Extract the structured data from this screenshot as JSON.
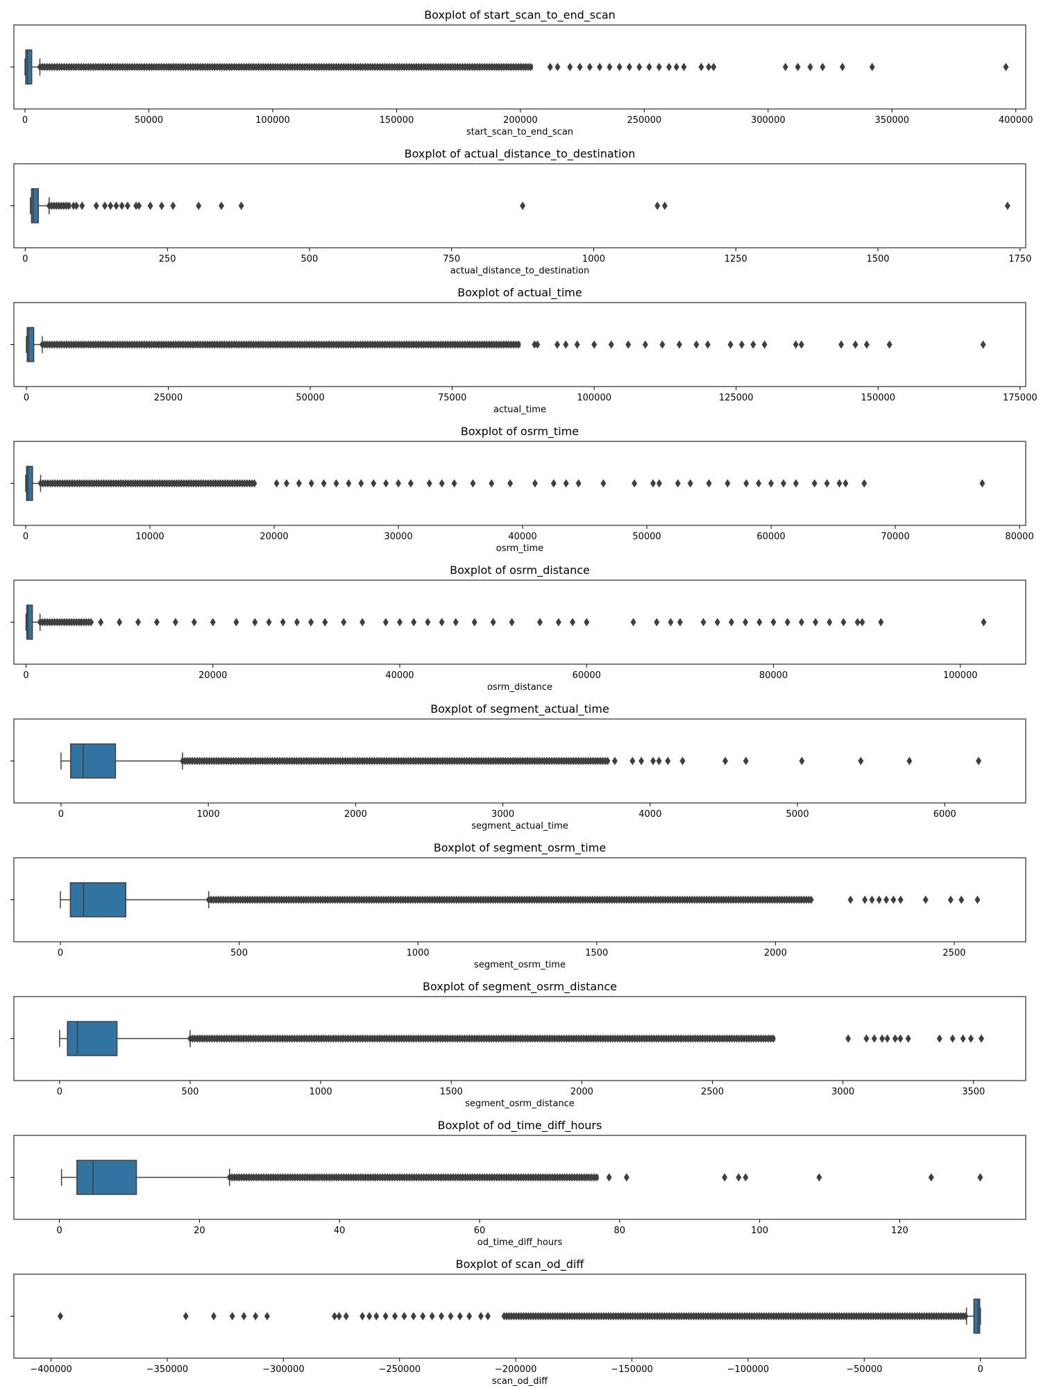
{
  "chart_data": [
    {
      "type": "boxplot",
      "title": "Boxplot of start_scan_to_end_scan",
      "xlabel": "start_scan_to_end_scan",
      "xlim": [
        -4500,
        404000
      ],
      "ticks": [
        0,
        50000,
        100000,
        150000,
        200000,
        250000,
        300000,
        350000,
        400000
      ],
      "tick_labels": [
        "0",
        "50000",
        "100000",
        "150000",
        "200000",
        "250000",
        "300000",
        "350000",
        "400000"
      ],
      "whisker_low": 0,
      "q1": 300,
      "median": 1000,
      "q3": 2700,
      "whisker_high": 6000,
      "outlier_band": [
        6000,
        205000
      ],
      "outliers": [
        212000,
        215000,
        220000,
        224000,
        228000,
        232000,
        236000,
        240000,
        244000,
        248000,
        252000,
        256000,
        260000,
        263000,
        266000,
        273000,
        276000,
        278000,
        307000,
        312000,
        317000,
        322000,
        330000,
        342000,
        396000
      ]
    },
    {
      "type": "boxplot",
      "title": "Boxplot of actual_distance_to_destination",
      "xlabel": "actual_distance_to_destination",
      "xlim": [
        -20,
        1760
      ],
      "ticks": [
        0,
        250,
        500,
        750,
        1000,
        1250,
        1500,
        1750
      ],
      "tick_labels": [
        "0",
        "250",
        "500",
        "750",
        "1000",
        "1250",
        "1500",
        "1750"
      ],
      "whisker_low": 9,
      "q1": 11,
      "median": 14,
      "q3": 23,
      "whisker_high": 42,
      "outlier_band": [
        42,
        80
      ],
      "outliers": [
        85,
        90,
        100,
        125,
        140,
        150,
        160,
        170,
        180,
        195,
        200,
        220,
        240,
        260,
        305,
        345,
        380,
        875,
        1112,
        1125,
        1728
      ]
    },
    {
      "type": "boxplot",
      "title": "Boxplot of actual_time",
      "xlabel": "actual_time",
      "xlim": [
        -2200,
        176000
      ],
      "ticks": [
        0,
        25000,
        50000,
        75000,
        100000,
        125000,
        150000,
        175000
      ],
      "tick_labels": [
        "0",
        "25000",
        "50000",
        "75000",
        "100000",
        "125000",
        "150000",
        "175000"
      ],
      "whisker_low": 0,
      "q1": 150,
      "median": 400,
      "q3": 1300,
      "whisker_high": 2800,
      "outlier_band": [
        2800,
        87000
      ],
      "outliers": [
        89500,
        90000,
        93500,
        95000,
        97000,
        100000,
        103000,
        106000,
        109000,
        112000,
        115000,
        118000,
        120000,
        124000,
        126000,
        128000,
        130000,
        135500,
        136500,
        143500,
        146000,
        148000,
        152000,
        168500
      ]
    },
    {
      "type": "boxplot",
      "title": "Boxplot of osrm_time",
      "xlabel": "osrm_time",
      "xlim": [
        -950,
        80500
      ],
      "ticks": [
        0,
        10000,
        20000,
        30000,
        40000,
        50000,
        60000,
        70000,
        80000
      ],
      "tick_labels": [
        "0",
        "10000",
        "20000",
        "30000",
        "40000",
        "50000",
        "60000",
        "70000",
        "80000"
      ],
      "whisker_low": 0,
      "q1": 70,
      "median": 180,
      "q3": 550,
      "whisker_high": 1200,
      "outlier_band": [
        1200,
        18500
      ],
      "outliers": [
        20200,
        21000,
        22000,
        23000,
        24000,
        25000,
        26000,
        27000,
        28000,
        29000,
        30000,
        31000,
        32500,
        33500,
        34500,
        36000,
        37500,
        39000,
        41000,
        42500,
        43500,
        44500,
        46500,
        49000,
        50500,
        51000,
        52500,
        53500,
        55000,
        56500,
        58000,
        59000,
        60000,
        61000,
        62000,
        63500,
        64500,
        65500,
        66000,
        67500,
        77000
      ]
    },
    {
      "type": "boxplot",
      "title": "Boxplot of osrm_distance",
      "xlabel": "osrm_distance",
      "xlim": [
        -1300,
        107000
      ],
      "ticks": [
        0,
        20000,
        40000,
        60000,
        80000,
        100000
      ],
      "tick_labels": [
        "0",
        "20000",
        "40000",
        "60000",
        "80000",
        "100000"
      ],
      "whisker_low": 0,
      "q1": 80,
      "median": 220,
      "q3": 680,
      "whisker_high": 1500,
      "outlier_band": [
        1500,
        7000
      ],
      "outliers": [
        8000,
        10000,
        12000,
        14000,
        16000,
        18000,
        20000,
        22500,
        24500,
        26000,
        27500,
        29000,
        30500,
        32000,
        34000,
        36000,
        38500,
        40000,
        41500,
        43000,
        44500,
        46000,
        48000,
        50000,
        52000,
        55000,
        57000,
        58500,
        60000,
        65000,
        67500,
        69000,
        70000,
        72500,
        74000,
        75500,
        77000,
        78500,
        80000,
        81500,
        83000,
        84500,
        86000,
        87500,
        89000,
        89500,
        91500,
        102500
      ]
    },
    {
      "type": "boxplot",
      "title": "Boxplot of segment_actual_time",
      "xlabel": "segment_actual_time",
      "xlim": [
        -320,
        6550
      ],
      "ticks": [
        0,
        1000,
        2000,
        3000,
        4000,
        5000,
        6000
      ],
      "tick_labels": [
        "0",
        "1000",
        "2000",
        "3000",
        "4000",
        "5000",
        "6000"
      ],
      "whisker_low": 0,
      "q1": 65,
      "median": 150,
      "q3": 370,
      "whisker_high": 825,
      "outlier_band": [
        825,
        3720
      ],
      "outliers": [
        3760,
        3880,
        3940,
        4020,
        4060,
        4120,
        4220,
        4510,
        4650,
        5030,
        5430,
        5760,
        6230
      ]
    },
    {
      "type": "boxplot",
      "title": "Boxplot of segment_osrm_time",
      "xlabel": "segment_osrm_time",
      "xlim": [
        -130,
        2700
      ],
      "ticks": [
        0,
        500,
        1000,
        1500,
        2000,
        2500
      ],
      "tick_labels": [
        "0",
        "500",
        "1000",
        "1500",
        "2000",
        "2500"
      ],
      "whisker_low": 0,
      "q1": 28,
      "median": 65,
      "q3": 183,
      "whisker_high": 415,
      "outlier_band": [
        415,
        2100
      ],
      "outliers": [
        2210,
        2250,
        2270,
        2290,
        2310,
        2330,
        2350,
        2420,
        2490,
        2520,
        2565
      ]
    },
    {
      "type": "boxplot",
      "title": "Boxplot of segment_osrm_distance",
      "xlabel": "segment_osrm_distance",
      "xlim": [
        -175,
        3700
      ],
      "ticks": [
        0,
        500,
        1000,
        1500,
        2000,
        2500,
        3000,
        3500
      ],
      "tick_labels": [
        "0",
        "500",
        "1000",
        "1500",
        "2000",
        "2500",
        "3000",
        "3500"
      ],
      "whisker_low": 0,
      "q1": 30,
      "median": 68,
      "q3": 220,
      "whisker_high": 500,
      "outlier_band": [
        500,
        2740
      ],
      "outliers": [
        3020,
        3090,
        3120,
        3150,
        3170,
        3200,
        3220,
        3250,
        3370,
        3420,
        3460,
        3490,
        3530
      ]
    },
    {
      "type": "boxplot",
      "title": "Boxplot of od_time_diff_hours",
      "xlabel": "od_time_diff_hours",
      "xlim": [
        -6.5,
        138
      ],
      "ticks": [
        0,
        20,
        40,
        60,
        80,
        100,
        120
      ],
      "tick_labels": [
        "0",
        "20",
        "40",
        "60",
        "80",
        "100",
        "120"
      ],
      "whisker_low": 0.3,
      "q1": 2.5,
      "median": 4.8,
      "q3": 11,
      "whisker_high": 24.3,
      "outlier_band": [
        24.3,
        77
      ],
      "outliers": [
        78.5,
        81,
        95,
        97,
        98,
        108.5,
        124.5,
        131.5
      ]
    },
    {
      "type": "boxplot",
      "title": "Boxplot of scan_od_diff",
      "xlabel": "scan_od_diff",
      "xlim": [
        -416000,
        19500
      ],
      "ticks": [
        -400000,
        -350000,
        -300000,
        -250000,
        -200000,
        -150000,
        -100000,
        -50000,
        0
      ],
      "tick_labels": [
        "−400000",
        "−350000",
        "−300000",
        "−250000",
        "−200000",
        "−150000",
        "−100000",
        "−50000",
        "0"
      ],
      "whisker_low": -6000,
      "q1": -2800,
      "median": -1000,
      "q3": -300,
      "whisker_high": 0,
      "outlier_band": [
        -205000,
        -6000
      ],
      "outliers": [
        -396000,
        -342000,
        -330000,
        -322000,
        -317000,
        -312000,
        -307000,
        -278000,
        -276000,
        -273000,
        -266000,
        -263000,
        -260000,
        -256000,
        -252000,
        -248000,
        -244000,
        -240000,
        -236000,
        -232000,
        -228000,
        -224000,
        -220000,
        -215000,
        -212000
      ]
    }
  ]
}
